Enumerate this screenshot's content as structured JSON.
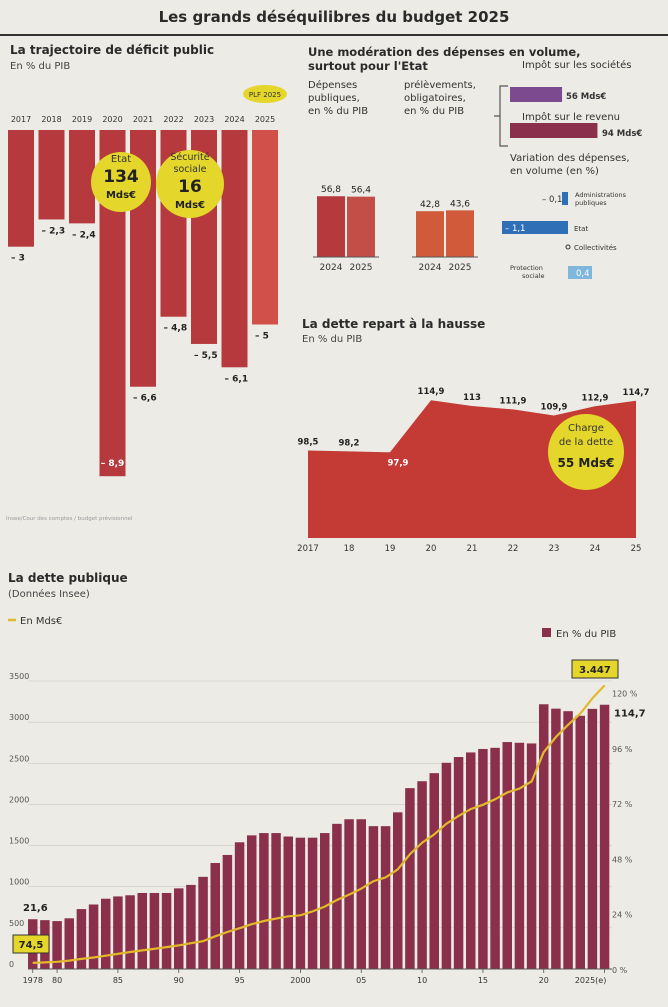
{
  "header": {
    "title": "Les grands déséquilibres du budget 2025"
  },
  "colors": {
    "bar": "#b63a3d",
    "bar2": "#c24e47",
    "deficit_2025": "#d1504a",
    "orange": "#d15a3b",
    "line": "#e2b92a",
    "yellow": "#e4d62a",
    "blue": "#2f6fb5",
    "lightblue": "#7eb6dc",
    "purple": "#7b4a8f",
    "maroon": "#8a2f4c",
    "area": "#c43b35"
  },
  "chart_data": [
    {
      "id": "deficit",
      "type": "bar",
      "title": "La trajectoire de déficit public",
      "subtitle": "En % du PIB",
      "categories": [
        "2017",
        "2018",
        "2019",
        "2020",
        "2021",
        "2022",
        "2023",
        "2024",
        "2025"
      ],
      "values": [
        -3,
        -2.3,
        -2.4,
        -8.9,
        -6.6,
        -4.8,
        -5.5,
        -6.1,
        -5
      ],
      "labels": [
        "– 3",
        "– 2,3",
        "– 2,4",
        "– 8,9",
        "– 6,6",
        "– 4,8",
        "– 5,5",
        "– 6,1",
        "– 5"
      ],
      "ylim": [
        -9,
        0
      ],
      "highlight_tag": "PLF 2025",
      "callouts": [
        {
          "top": "Etat",
          "value": "134",
          "unit": "Mds€"
        },
        {
          "top": "Sécurité sociale",
          "value": "16",
          "unit": "Mds€"
        }
      ],
      "source": "Insee/Cour des comptes / budget prévisionnel"
    },
    {
      "id": "moderation",
      "type": "bar",
      "title": "Une modération des dépenses en volume, surtout pour l'Etat",
      "groups": [
        {
          "label": "Dépenses publiques, en % du PIB",
          "categories": [
            "2024",
            "2025"
          ],
          "values": [
            56.8,
            56.4
          ],
          "labels": [
            "56,8",
            "56,4"
          ]
        },
        {
          "label": "prélèvements obligatoires, en % du PIB",
          "categories": [
            "2024",
            "2025"
          ],
          "values": [
            42.8,
            43.6
          ],
          "labels": [
            "42,8",
            "43,6"
          ]
        }
      ],
      "ylim": [
        0,
        60
      ]
    },
    {
      "id": "impots",
      "type": "bar",
      "categories": [
        "Impôt sur les sociétés",
        "Impôt sur le revenu"
      ],
      "values": [
        56,
        94
      ],
      "labels": [
        "56 Mds€",
        "94 Mds€"
      ]
    },
    {
      "id": "variation",
      "type": "bar",
      "title": "Variation des dépenses, en volume (en %)",
      "categories": [
        "Administrations publiques",
        "Etat",
        "Collectivités",
        "Protection sociale"
      ],
      "values": [
        -0.1,
        -1.1,
        0,
        0.4
      ],
      "labels": [
        "– 0,1",
        "– 1,1",
        "0",
        "0,4"
      ]
    },
    {
      "id": "dette",
      "type": "area",
      "title": "La dette repart à la hausse",
      "subtitle": "En % du PIB",
      "x": [
        "2017",
        "2018",
        "2019",
        "2020",
        "2021",
        "2022",
        "2023",
        "2024",
        "2025"
      ],
      "tick_labels": [
        "2017",
        "18",
        "19",
        "20",
        "21",
        "22",
        "23",
        "24",
        "25"
      ],
      "values": [
        98.5,
        98.2,
        97.9,
        114.9,
        113,
        111.9,
        109.9,
        112.9,
        114.7
      ],
      "labels": [
        "98,5",
        "98,2",
        "97,9",
        "114,9",
        "113",
        "111,9",
        "109,9",
        "112,9",
        "114,7"
      ],
      "callout": {
        "text": "Charge de la dette",
        "value": "55 Mds€"
      }
    },
    {
      "id": "dette_publique",
      "type": "bar",
      "title": "La dette publique",
      "subtitle": "Données Insee",
      "x": [
        1978,
        1979,
        1980,
        1981,
        1982,
        1983,
        1984,
        1985,
        1986,
        1987,
        1988,
        1989,
        1990,
        1991,
        1992,
        1993,
        1994,
        1995,
        1996,
        1997,
        1998,
        1999,
        2000,
        2001,
        2002,
        2003,
        2004,
        2005,
        2006,
        2007,
        2008,
        2009,
        2010,
        2011,
        2012,
        2013,
        2014,
        2015,
        2016,
        2017,
        2018,
        2019,
        2020,
        2021,
        2022,
        2023,
        2024,
        2025
      ],
      "x_tick_labels": [
        "1978",
        "80",
        "85",
        "90",
        "95",
        "2000",
        "05",
        "10",
        "15",
        "20",
        "2025(e)"
      ],
      "series": [
        {
          "name": "En % du PIB",
          "axis": "right",
          "values": [
            21.6,
            21.2,
            20.8,
            22,
            26,
            28,
            30.5,
            31.5,
            32,
            33,
            33,
            33,
            35,
            36.5,
            40,
            46,
            49.5,
            55,
            58,
            59,
            59,
            57.5,
            57,
            57,
            59,
            63,
            65,
            65,
            62,
            62,
            68,
            78.5,
            81.5,
            85,
            89.5,
            92,
            94,
            95.5,
            96,
            98.5,
            98.2,
            97.9,
            114.9,
            113,
            111.9,
            109.9,
            112.9,
            114.7
          ]
        },
        {
          "name": "En Mds€",
          "axis": "left",
          "values": [
            74.5,
            80,
            88,
            102,
            123,
            140,
            162,
            184,
            207,
            226,
            245,
            266,
            287,
            314,
            338,
            398,
            450,
            496,
            544,
            583,
            612,
            640,
            652,
            700,
            758,
            838,
            904,
            976,
            1067,
            1113,
            1210,
            1395,
            1535,
            1636,
            1766,
            1860,
            1943,
            1995,
            2062,
            2145,
            2192,
            2279,
            2635,
            2819,
            2968,
            3102,
            3290,
            3447
          ]
        }
      ],
      "ylim_left": [
        0,
        3500
      ],
      "y_ticks_left": [
        "0",
        "500",
        "1000",
        "1500",
        "2000",
        "2500",
        "3000",
        "3500"
      ],
      "ylim_right": [
        0,
        125
      ],
      "y_ticks_right": [
        "0 %",
        "24 %",
        "48 %",
        "72 %",
        "96 %",
        "120 %"
      ],
      "annotations": {
        "first_pct": "21,6",
        "first_mds": "74,5",
        "last_pct": "114,7",
        "last_mds": "3.447"
      }
    }
  ]
}
